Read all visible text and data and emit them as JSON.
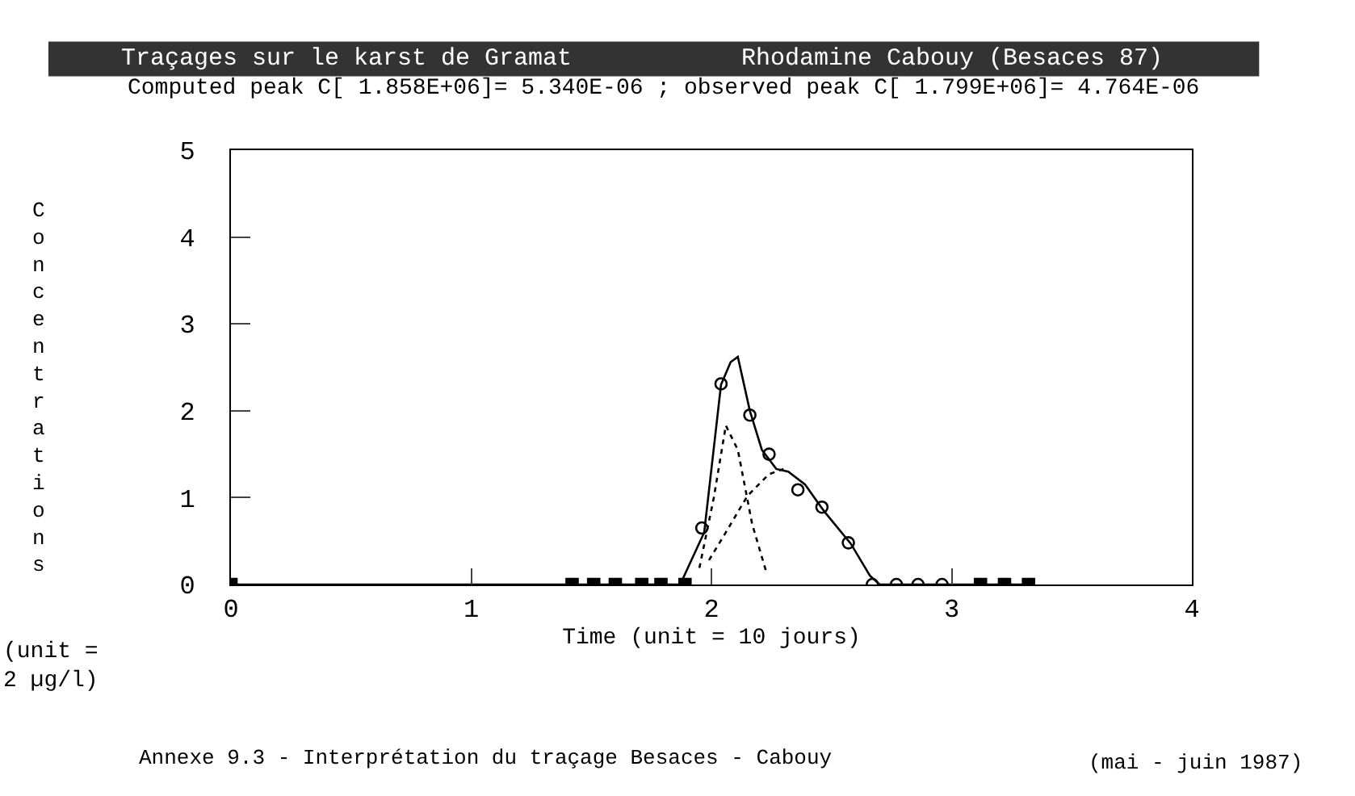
{
  "chart_data": {
    "type": "line",
    "title": "Traçages sur le karst de Gramat",
    "subtitle": "Computed peak C[ 1.858E+06]= 5.340E-06 ; observed peak C[ 1.799E+06]= 4.764E-06",
    "xlabel": "Time (unit = 10 jours)",
    "ylabel": "Concentrations",
    "annotations": [
      "Rhodamine Cabouy (Besaces 87)",
      "(unit =\n2 µg/l)",
      "Annexe 9.3 - Interprétation du traçage Besaces - Cabouy",
      "(mai - juin 1987)"
    ],
    "xlim": [
      0,
      4
    ],
    "xticks": [
      0,
      1,
      2,
      3,
      4
    ],
    "ylim": [
      0,
      5
    ],
    "yticks": [
      0,
      1,
      2,
      3,
      4,
      5
    ],
    "grid": false,
    "series": [
      {
        "color": "#000000",
        "line_style": "solid",
        "marker": "none",
        "x": [
          0,
          1.87,
          1.97,
          2.04,
          2.08,
          2.11,
          2.16,
          2.21,
          2.27,
          2.32,
          2.39,
          2.47,
          2.58,
          2.66,
          2.7,
          3.3
        ],
        "values": [
          0,
          0,
          0.6,
          2.3,
          2.56,
          2.62,
          2.0,
          1.55,
          1.33,
          1.3,
          1.15,
          0.84,
          0.47,
          0.1,
          0,
          0
        ]
      },
      {
        "color": "#000000",
        "line_style": "dotted",
        "marker": "none",
        "x": [
          1.95,
          2.01,
          2.06,
          2.11,
          2.17,
          2.23
        ],
        "values": [
          0.19,
          1.0,
          1.83,
          1.55,
          0.69,
          0.13
        ]
      },
      {
        "color": "#000000",
        "line_style": "dotted",
        "marker": "none",
        "x": [
          1.99,
          2.06,
          2.15,
          2.24,
          2.3
        ],
        "values": [
          0.28,
          0.6,
          1.02,
          1.27,
          1.33
        ]
      },
      {
        "type": "scatter",
        "color": "#000000",
        "marker": "circle",
        "x": [
          1.96,
          2.04,
          2.16,
          2.24,
          2.36,
          2.46,
          2.57,
          2.67,
          2.77,
          2.86,
          2.96
        ],
        "values": [
          0.65,
          2.31,
          1.95,
          1.5,
          1.09,
          0.89,
          0.48,
          0,
          0,
          0,
          0
        ]
      },
      {
        "type": "scatter",
        "color": "#000000",
        "marker": "square",
        "x": [
          0,
          1.42,
          1.51,
          1.6,
          1.71,
          1.79,
          1.89,
          3.12,
          3.22,
          3.32
        ],
        "values": [
          0,
          0,
          0,
          0,
          0,
          0,
          0,
          0,
          0,
          0
        ]
      }
    ]
  }
}
